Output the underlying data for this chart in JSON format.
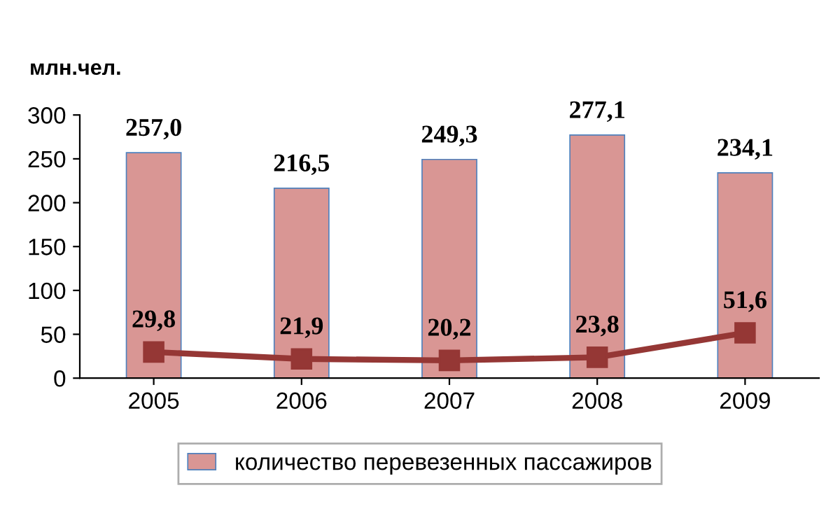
{
  "chart_data": {
    "type": "bar",
    "ylabel": "млн.чел.",
    "categories": [
      "2005",
      "2006",
      "2007",
      "2008",
      "2009"
    ],
    "series": [
      {
        "name": "количество перевезенных пассажиров",
        "color": "#d99694",
        "values": [
          257.0,
          216.5,
          249.3,
          277.1,
          234.1
        ],
        "value_labels": [
          "257,0",
          "216,5",
          "249,3",
          "277,1",
          "234,1"
        ]
      },
      {
        "type": "line",
        "color": "#953735",
        "marker": "square",
        "values": [
          29.8,
          21.9,
          20.2,
          23.8,
          51.6
        ],
        "value_labels": [
          "29,8",
          "21,9",
          "20,2",
          "23,8",
          "51,6"
        ]
      }
    ],
    "ylim": [
      0,
      300
    ],
    "yticks": [
      0,
      50,
      100,
      150,
      200,
      250,
      300
    ],
    "grid": false,
    "legend": "bottom"
  }
}
